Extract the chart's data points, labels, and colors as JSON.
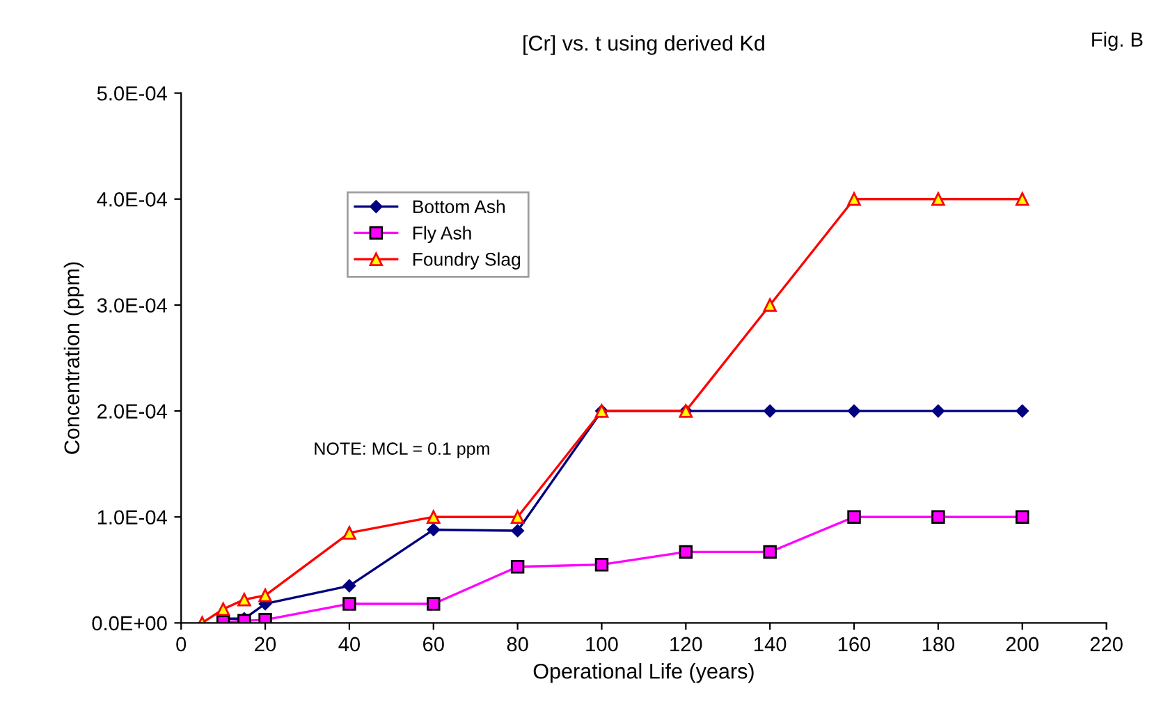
{
  "chart_data": {
    "type": "line",
    "title": "[Cr] vs. t using derived Kd",
    "xlabel": "Operational Life (years)",
    "ylabel": "Concentration (ppm)",
    "annotations": [
      "Fig. B",
      "NOTE: MCL = 0.1 ppm"
    ],
    "series": [
      {
        "name": "Bottom Ash",
        "color": "#000080",
        "marker": "diamond",
        "x": [
          10,
          15,
          20,
          40,
          60,
          80,
          100,
          120,
          140,
          160,
          180,
          200
        ],
        "values": [
          4e-06,
          4e-06,
          1.8e-05,
          3.5e-05,
          8.8e-05,
          8.7e-05,
          0.0002,
          0.0002,
          0.0002,
          0.0002,
          0.0002,
          0.0002
        ]
      },
      {
        "name": "Fly Ash",
        "color": "#ff00ff",
        "marker": "square",
        "x": [
          10,
          15,
          20,
          40,
          60,
          80,
          100,
          120,
          140,
          160,
          180,
          200
        ],
        "values": [
          1e-06,
          2e-06,
          3e-06,
          1.8e-05,
          1.8e-05,
          5.3e-05,
          5.5e-05,
          6.7e-05,
          6.7e-05,
          0.0001,
          0.0001,
          0.0001
        ]
      },
      {
        "name": "Foundry Slag",
        "color": "#ff0000",
        "marker": "triangle",
        "x": [
          5,
          10,
          15,
          20,
          40,
          60,
          80,
          100,
          120,
          140,
          160,
          180,
          200
        ],
        "values": [
          0.0,
          1.3e-05,
          2.2e-05,
          2.6e-05,
          8.5e-05,
          0.0001,
          0.0001,
          0.0002,
          0.0002,
          0.0003,
          0.0004,
          0.0004,
          0.0004
        ]
      }
    ],
    "xlim": [
      0,
      220
    ],
    "xticks": [
      0,
      20,
      40,
      60,
      80,
      100,
      120,
      140,
      160,
      180,
      200,
      220
    ],
    "ylim": [
      0,
      0.0005
    ],
    "yticks": [
      {
        "value": 0,
        "label": "0.0E+00"
      },
      {
        "value": 0.0001,
        "label": "1.0E-04"
      },
      {
        "value": 0.0002,
        "label": "2.0E-04"
      },
      {
        "value": 0.0003,
        "label": "3.0E-04"
      },
      {
        "value": 0.0004,
        "label": "4.0E-04"
      },
      {
        "value": 0.0005,
        "label": "5.0E-04"
      }
    ],
    "grid": false,
    "legend": "top left",
    "line_style": "solid"
  }
}
